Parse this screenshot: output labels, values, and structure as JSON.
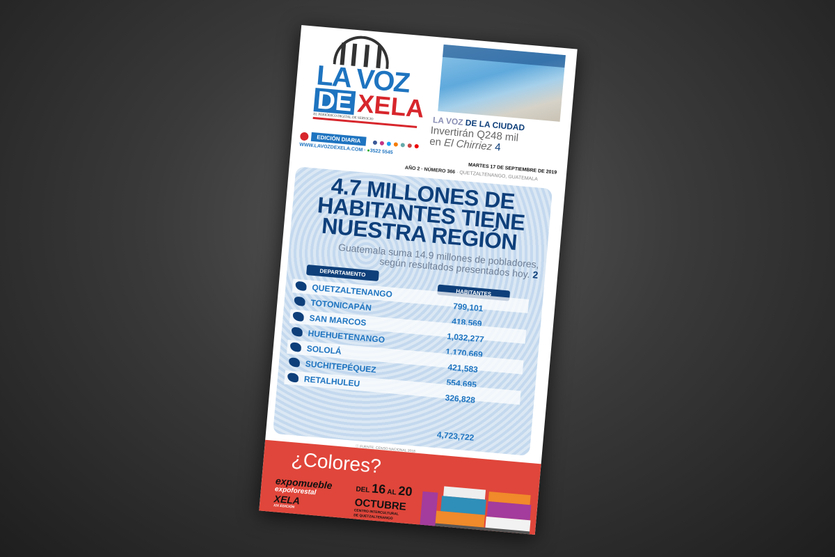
{
  "masthead": {
    "logo_line1": "LA VOZ",
    "logo_de": "DE",
    "logo_xela": "XELA",
    "tagline": "EL PERIÓDICO DIGITAL DE SERVICIO",
    "edition": "EDICIÓN DIARIA",
    "website": "WWW.LAVOZDEXELA.COM",
    "phone": "3522 5545",
    "social_icons": [
      "facebook-icon",
      "instagram-icon",
      "twitter-icon",
      "blog-icon",
      "edge-icon",
      "app-icon",
      "youtube-icon"
    ]
  },
  "teaser": {
    "kicker_a": "LA VOZ",
    "kicker_b": "DE LA CIUDAD",
    "line1": "Invertirán Q248 mil",
    "line2_pre": "en ",
    "line2_em": "El Chirriez",
    "page": "4"
  },
  "dateline": {
    "date": "MARTES 17 DE SEPTIEMBRE DE 2019",
    "issue": "AÑO 2 · NÚMERO 366",
    "place": "· QUETZALTENANGO, GUATEMALA"
  },
  "main": {
    "headline": "4.7 MILLONES DE HABITANTES TIENE NUESTRA REGIÓN",
    "sub1": "Guatemala suma 14.9 millones de pobladores,",
    "sub2": "según resultados presentados hoy.",
    "sub_page": "2",
    "table": {
      "headers": [
        "DEPARTAMENTO",
        "HABITANTES"
      ],
      "departments": [
        "QUETZALTENANGO",
        "TOTONICAPÁN",
        "SAN MARCOS",
        "HUEHUETENANGO",
        "SOLOLÁ",
        "SUCHITEPÉQUEZ",
        "RETALHULEU"
      ],
      "values": [
        "799,101",
        "418,569",
        "1,032,277",
        "1,170,669",
        "421,583",
        "554,695",
        "326,828"
      ],
      "total": "4,723,722"
    },
    "source": "FUENTE: CENSO NACIONAL 2018"
  },
  "ad": {
    "title": "¿Colores?",
    "brand1": "expomueble",
    "brand2": "expoforestal",
    "brand3": "XELA",
    "edition": "XIX EDICIÓN",
    "del": "DEL",
    "day1": "16",
    "al": "AL",
    "day2": "20",
    "month": "OCTUBRE",
    "venue1": "CENTRO INTERCULTURAL",
    "venue2": "DE QUETZALTENANGO"
  },
  "colors": {
    "brand_blue": "#1e74c0",
    "navy": "#0e3f7a",
    "red": "#d7262c",
    "ad_red": "#e0463b"
  }
}
